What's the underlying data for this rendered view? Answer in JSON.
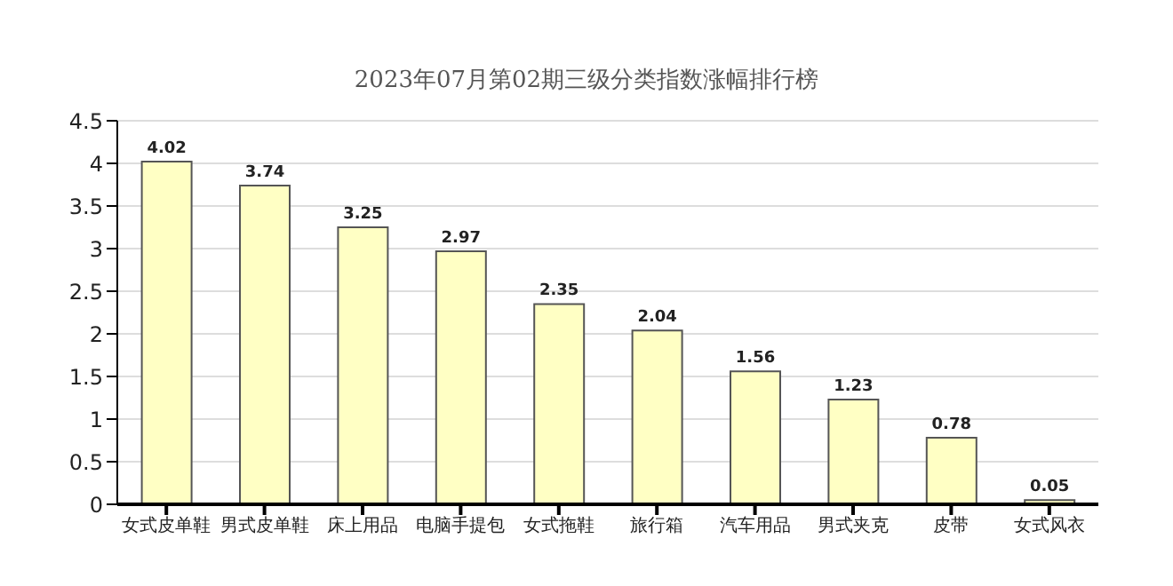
{
  "chart_data": {
    "type": "bar",
    "title": "2023年07月第02期三级分类指数涨幅排行榜",
    "categories": [
      "女式皮单鞋",
      "男式皮单鞋",
      "床上用品",
      "电脑手提包",
      "女式拖鞋",
      "旅行箱",
      "汽车用品",
      "男式夹克",
      "皮带",
      "女式风衣"
    ],
    "values": [
      4.02,
      3.74,
      3.25,
      2.97,
      2.35,
      2.04,
      1.56,
      1.23,
      0.78,
      0.05
    ],
    "color": "#ffffc4",
    "ylim": [
      0,
      4.5
    ],
    "yticks": [
      0,
      0.5,
      1,
      1.5,
      2,
      2.5,
      3,
      3.5,
      4,
      4.5
    ],
    "grid": "y",
    "data_labels": true
  }
}
